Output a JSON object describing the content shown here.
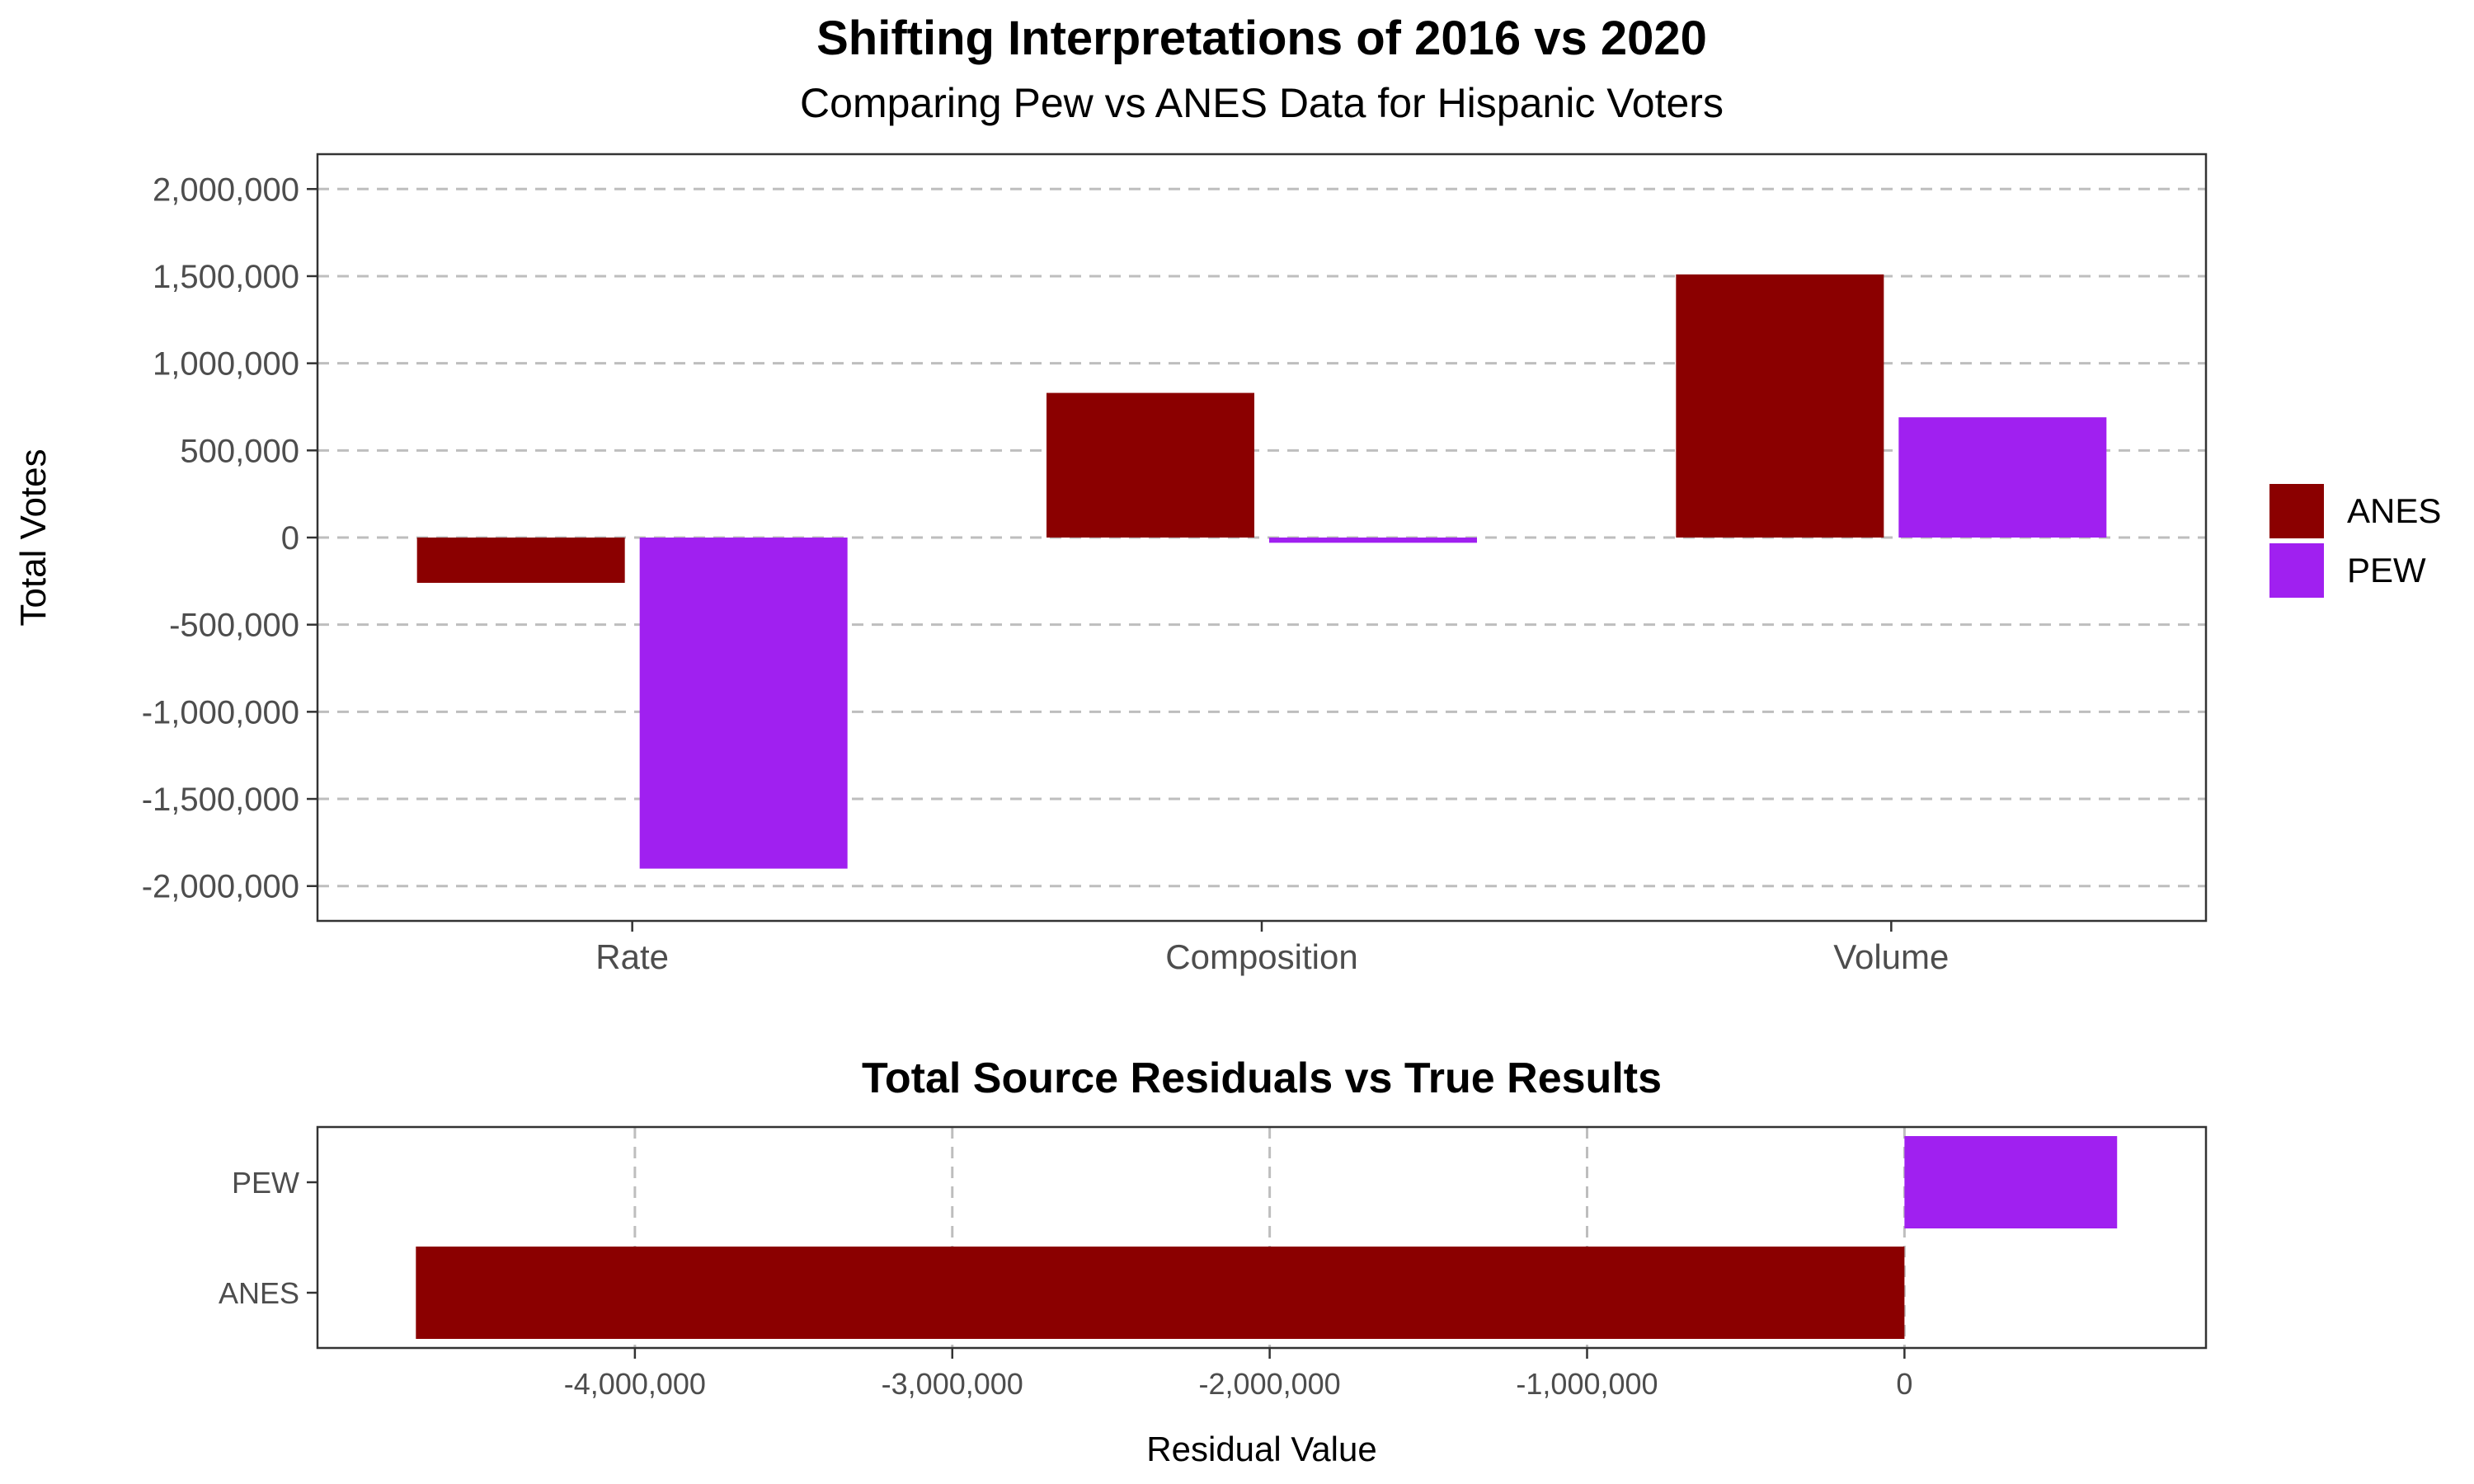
{
  "chart_data": [
    {
      "type": "bar",
      "title": "Shifting Interpretations of 2016 vs 2020",
      "subtitle": "Comparing Pew vs ANES Data for Hispanic Voters",
      "xlabel": "",
      "ylabel": "Total Votes",
      "categories": [
        "Rate",
        "Composition",
        "Volume"
      ],
      "series": [
        {
          "name": "ANES",
          "values": [
            -260000,
            830000,
            1510000
          ]
        },
        {
          "name": "PEW",
          "values": [
            -1900000,
            -30000,
            690000
          ]
        }
      ],
      "ylim": [
        -2200000,
        2200000
      ],
      "yticks": [
        2000000,
        1500000,
        1000000,
        500000,
        0,
        -500000,
        -1000000,
        -1500000,
        -2000000
      ],
      "ytick_labels": [
        "2,000,000",
        "1,500,000",
        "1,000,000",
        "500,000",
        "0",
        "-500,000",
        "-1,000,000",
        "-1,500,000",
        "-2,000,000"
      ],
      "grid": "horizontal dashed",
      "legend": {
        "position": "right",
        "entries": [
          "ANES",
          "PEW"
        ]
      }
    },
    {
      "type": "bar",
      "orientation": "horizontal",
      "title": "Total Source Residuals vs True Results",
      "xlabel": "Residual Value",
      "ylabel": "",
      "categories": [
        "ANES",
        "PEW"
      ],
      "values": [
        -4690000,
        670000
      ],
      "xlim": [
        -5000000,
        950000
      ],
      "xticks": [
        -4000000,
        -3000000,
        -2000000,
        -1000000,
        0
      ],
      "xtick_labels": [
        "-4,000,000",
        "-3,000,000",
        "-2,000,000",
        "-1,000,000",
        "0"
      ],
      "grid": "vertical dashed"
    }
  ],
  "colors": {
    "ANES": "#8b0000",
    "PEW": "#a020f0",
    "grid": "#bebebe",
    "axis_text": "#4d4d4d"
  }
}
